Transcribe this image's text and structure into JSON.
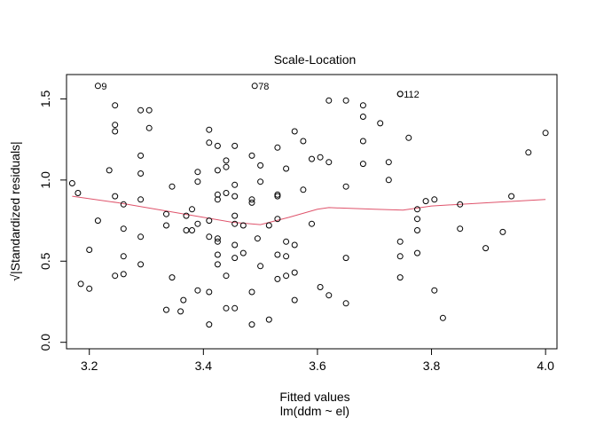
{
  "chart_data": {
    "type": "scatter",
    "title": "Scale-Location",
    "xlabel": "Fitted values",
    "xlabel_sub": "lm(ddm ~ el)",
    "ylabel": "√|Standardized residuals|",
    "xlim": [
      3.16,
      4.02
    ],
    "ylim": [
      -0.04,
      1.65
    ],
    "xticks": [
      "3.2",
      "3.4",
      "3.6",
      "3.8",
      "4.0"
    ],
    "yticks": [
      "0.0",
      "0.5",
      "1.0",
      "1.5"
    ],
    "grid": false,
    "colors": {
      "points": "#000000",
      "smoother": "#DF536B"
    },
    "labeled_points": [
      {
        "label": "9",
        "x": 3.215,
        "y": 1.58
      },
      {
        "label": "78",
        "x": 3.49,
        "y": 1.58
      },
      {
        "label": "112",
        "x": 3.745,
        "y": 1.53
      }
    ],
    "smoother": {
      "x": [
        3.17,
        3.25,
        3.3,
        3.35,
        3.4,
        3.45,
        3.5,
        3.55,
        3.6,
        3.62,
        3.7,
        3.75,
        3.8,
        3.9,
        4.0
      ],
      "y": [
        0.9,
        0.86,
        0.83,
        0.8,
        0.77,
        0.74,
        0.725,
        0.77,
        0.82,
        0.83,
        0.82,
        0.815,
        0.84,
        0.86,
        0.88
      ]
    },
    "points": [
      {
        "x": 3.17,
        "y": 0.98
      },
      {
        "x": 3.18,
        "y": 0.92
      },
      {
        "x": 3.185,
        "y": 0.36
      },
      {
        "x": 3.2,
        "y": 0.33
      },
      {
        "x": 3.2,
        "y": 0.57
      },
      {
        "x": 3.215,
        "y": 0.75
      },
      {
        "x": 3.235,
        "y": 1.06
      },
      {
        "x": 3.245,
        "y": 0.41
      },
      {
        "x": 3.245,
        "y": 0.9
      },
      {
        "x": 3.245,
        "y": 1.3
      },
      {
        "x": 3.245,
        "y": 1.34
      },
      {
        "x": 3.245,
        "y": 1.46
      },
      {
        "x": 3.26,
        "y": 0.42
      },
      {
        "x": 3.26,
        "y": 0.53
      },
      {
        "x": 3.26,
        "y": 0.7
      },
      {
        "x": 3.26,
        "y": 0.85
      },
      {
        "x": 3.29,
        "y": 0.48
      },
      {
        "x": 3.29,
        "y": 0.65
      },
      {
        "x": 3.29,
        "y": 0.88
      },
      {
        "x": 3.29,
        "y": 1.04
      },
      {
        "x": 3.29,
        "y": 1.15
      },
      {
        "x": 3.29,
        "y": 1.43
      },
      {
        "x": 3.305,
        "y": 1.32
      },
      {
        "x": 3.305,
        "y": 1.43
      },
      {
        "x": 3.335,
        "y": 0.2
      },
      {
        "x": 3.335,
        "y": 0.72
      },
      {
        "x": 3.335,
        "y": 0.79
      },
      {
        "x": 3.345,
        "y": 0.4
      },
      {
        "x": 3.345,
        "y": 0.96
      },
      {
        "x": 3.36,
        "y": 0.19
      },
      {
        "x": 3.365,
        "y": 0.26
      },
      {
        "x": 3.37,
        "y": 0.69
      },
      {
        "x": 3.37,
        "y": 0.78
      },
      {
        "x": 3.38,
        "y": 0.82
      },
      {
        "x": 3.38,
        "y": 0.69
      },
      {
        "x": 3.39,
        "y": 0.32
      },
      {
        "x": 3.39,
        "y": 0.73
      },
      {
        "x": 3.39,
        "y": 0.99
      },
      {
        "x": 3.39,
        "y": 1.05
      },
      {
        "x": 3.41,
        "y": 0.11
      },
      {
        "x": 3.41,
        "y": 0.31
      },
      {
        "x": 3.41,
        "y": 0.65
      },
      {
        "x": 3.41,
        "y": 0.75
      },
      {
        "x": 3.41,
        "y": 1.23
      },
      {
        "x": 3.41,
        "y": 1.31
      },
      {
        "x": 3.425,
        "y": 0.48
      },
      {
        "x": 3.425,
        "y": 0.54
      },
      {
        "x": 3.425,
        "y": 0.62
      },
      {
        "x": 3.425,
        "y": 0.64
      },
      {
        "x": 3.425,
        "y": 0.88
      },
      {
        "x": 3.425,
        "y": 0.91
      },
      {
        "x": 3.425,
        "y": 1.06
      },
      {
        "x": 3.425,
        "y": 1.21
      },
      {
        "x": 3.44,
        "y": 0.21
      },
      {
        "x": 3.44,
        "y": 0.41
      },
      {
        "x": 3.44,
        "y": 0.92
      },
      {
        "x": 3.44,
        "y": 1.08
      },
      {
        "x": 3.44,
        "y": 1.12
      },
      {
        "x": 3.455,
        "y": 0.21
      },
      {
        "x": 3.455,
        "y": 0.52
      },
      {
        "x": 3.455,
        "y": 0.6
      },
      {
        "x": 3.455,
        "y": 0.73
      },
      {
        "x": 3.455,
        "y": 0.78
      },
      {
        "x": 3.455,
        "y": 0.9
      },
      {
        "x": 3.455,
        "y": 0.97
      },
      {
        "x": 3.455,
        "y": 1.21
      },
      {
        "x": 3.47,
        "y": 0.55
      },
      {
        "x": 3.47,
        "y": 0.72
      },
      {
        "x": 3.485,
        "y": 0.11
      },
      {
        "x": 3.485,
        "y": 0.31
      },
      {
        "x": 3.485,
        "y": 0.86
      },
      {
        "x": 3.485,
        "y": 0.88
      },
      {
        "x": 3.485,
        "y": 1.15
      },
      {
        "x": 3.495,
        "y": 0.64
      },
      {
        "x": 3.5,
        "y": 0.47
      },
      {
        "x": 3.5,
        "y": 0.99
      },
      {
        "x": 3.5,
        "y": 1.09
      },
      {
        "x": 3.515,
        "y": 0.14
      },
      {
        "x": 3.515,
        "y": 0.72
      },
      {
        "x": 3.53,
        "y": 0.39
      },
      {
        "x": 3.53,
        "y": 0.54
      },
      {
        "x": 3.53,
        "y": 0.76
      },
      {
        "x": 3.53,
        "y": 0.9
      },
      {
        "x": 3.53,
        "y": 0.91
      },
      {
        "x": 3.53,
        "y": 1.2
      },
      {
        "x": 3.545,
        "y": 0.41
      },
      {
        "x": 3.545,
        "y": 0.53
      },
      {
        "x": 3.545,
        "y": 0.62
      },
      {
        "x": 3.545,
        "y": 1.07
      },
      {
        "x": 3.56,
        "y": 0.26
      },
      {
        "x": 3.56,
        "y": 0.43
      },
      {
        "x": 3.56,
        "y": 0.6
      },
      {
        "x": 3.56,
        "y": 1.3
      },
      {
        "x": 3.575,
        "y": 0.94
      },
      {
        "x": 3.575,
        "y": 1.24
      },
      {
        "x": 3.59,
        "y": 0.73
      },
      {
        "x": 3.59,
        "y": 1.13
      },
      {
        "x": 3.605,
        "y": 0.34
      },
      {
        "x": 3.605,
        "y": 1.14
      },
      {
        "x": 3.62,
        "y": 0.29
      },
      {
        "x": 3.62,
        "y": 1.11
      },
      {
        "x": 3.62,
        "y": 1.49
      },
      {
        "x": 3.65,
        "y": 0.24
      },
      {
        "x": 3.65,
        "y": 0.52
      },
      {
        "x": 3.65,
        "y": 0.96
      },
      {
        "x": 3.65,
        "y": 1.49
      },
      {
        "x": 3.68,
        "y": 1.1
      },
      {
        "x": 3.68,
        "y": 1.24
      },
      {
        "x": 3.68,
        "y": 1.39
      },
      {
        "x": 3.68,
        "y": 1.46
      },
      {
        "x": 3.71,
        "y": 1.35
      },
      {
        "x": 3.725,
        "y": 1.0
      },
      {
        "x": 3.725,
        "y": 1.11
      },
      {
        "x": 3.745,
        "y": 0.4
      },
      {
        "x": 3.745,
        "y": 0.53
      },
      {
        "x": 3.745,
        "y": 0.62
      },
      {
        "x": 3.745,
        "y": 1.53
      },
      {
        "x": 3.76,
        "y": 1.26
      },
      {
        "x": 3.775,
        "y": 0.55
      },
      {
        "x": 3.775,
        "y": 0.69
      },
      {
        "x": 3.775,
        "y": 0.76
      },
      {
        "x": 3.775,
        "y": 0.82
      },
      {
        "x": 3.79,
        "y": 0.87
      },
      {
        "x": 3.805,
        "y": 0.32
      },
      {
        "x": 3.805,
        "y": 0.88
      },
      {
        "x": 3.82,
        "y": 0.15
      },
      {
        "x": 3.85,
        "y": 0.7
      },
      {
        "x": 3.85,
        "y": 0.85
      },
      {
        "x": 3.895,
        "y": 0.58
      },
      {
        "x": 3.925,
        "y": 0.68
      },
      {
        "x": 3.94,
        "y": 0.9
      },
      {
        "x": 3.97,
        "y": 1.17
      },
      {
        "x": 4.0,
        "y": 1.29
      }
    ]
  }
}
